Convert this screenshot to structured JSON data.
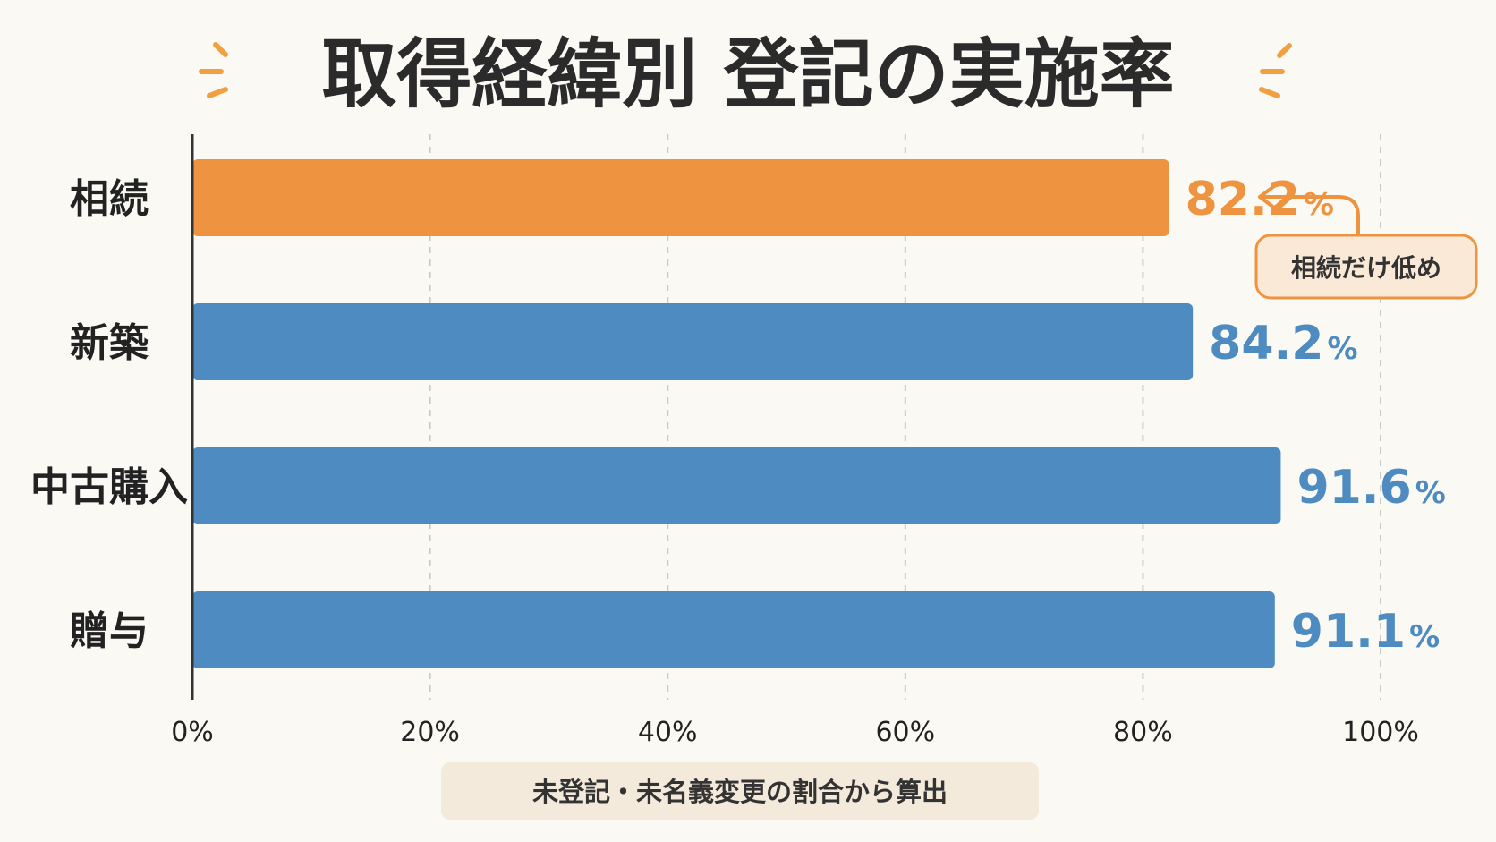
{
  "chart_data": {
    "type": "bar",
    "orientation": "horizontal",
    "title": "取得経緯別 登記の実施率",
    "categories": [
      "相続",
      "新築",
      "中古購入",
      "贈与"
    ],
    "values": [
      82.2,
      84.2,
      91.6,
      91.1
    ],
    "value_unit": "%",
    "xlim": [
      0,
      100
    ],
    "x_ticks": [
      "0%",
      "20%",
      "40%",
      "60%",
      "80%",
      "100%"
    ],
    "grid": "vertical dashed",
    "highlight_index": 0,
    "colors": {
      "highlight": "#ee9440",
      "default": "#4d8bc0"
    },
    "annotation": {
      "text": "相続だけ低め",
      "target": "相続"
    },
    "footnote": "未登記・未名義変更の割合から算出"
  }
}
